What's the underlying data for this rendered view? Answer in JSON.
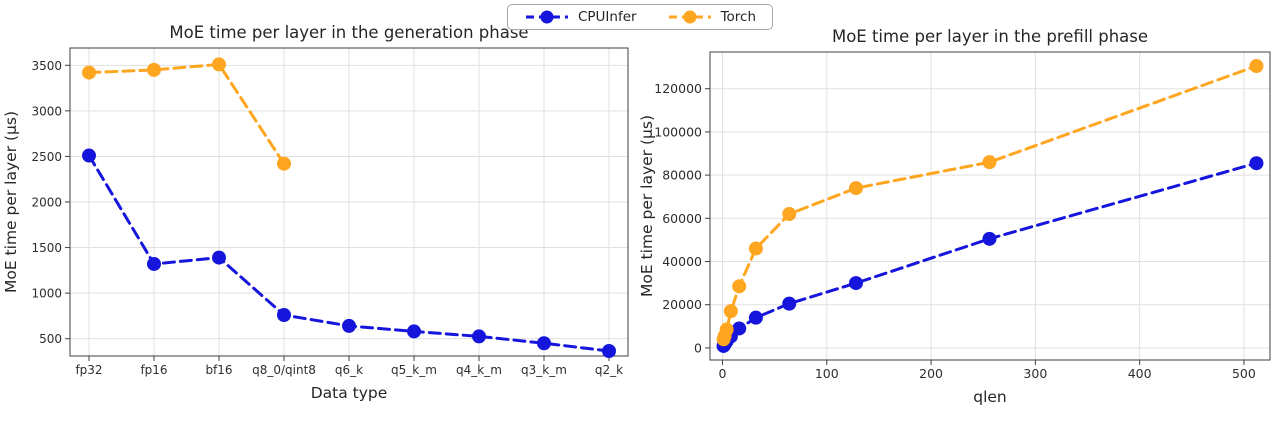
{
  "legend": {
    "items": [
      {
        "label": "CPUInfer",
        "color": "#1515dc"
      },
      {
        "label": "Torch",
        "color": "#ffa620"
      }
    ]
  },
  "chart_data": [
    {
      "type": "line",
      "title": "MoE time per layer in the generation phase",
      "xlabel": "Data type",
      "ylabel": "MoE time per layer (μs)",
      "categories": [
        "fp32",
        "fp16",
        "bf16",
        "q8_0/qint8",
        "q6_k",
        "q5_k_m",
        "q4_k_m",
        "q3_k_m",
        "q2_k"
      ],
      "series": [
        {
          "name": "CPUInfer",
          "color": "#1515dc",
          "values": [
            2510,
            1320,
            1390,
            760,
            640,
            580,
            525,
            450,
            365
          ]
        },
        {
          "name": "Torch",
          "color": "#ffa620",
          "values": [
            3420,
            3450,
            3510,
            2420,
            null,
            null,
            null,
            null,
            null
          ]
        }
      ],
      "ylim": [
        310,
        3690
      ],
      "yticks": [
        500,
        1000,
        1500,
        2000,
        2500,
        3000,
        3500
      ],
      "grid": true,
      "line_style": "dashed",
      "legend_position": "figure-top-center"
    },
    {
      "type": "line",
      "title": "MoE time per layer in the prefill phase",
      "xlabel": "qlen",
      "ylabel": "MoE time per layer (μs)",
      "x": [
        1,
        2,
        4,
        8,
        16,
        32,
        64,
        128,
        256,
        512
      ],
      "series": [
        {
          "name": "CPUInfer",
          "color": "#1515dc",
          "values": [
            900,
            1600,
            3100,
            5300,
            9000,
            14000,
            20500,
            30000,
            50500,
            85500
          ]
        },
        {
          "name": "Torch",
          "color": "#ffa620",
          "values": [
            4000,
            5500,
            8500,
            17000,
            28500,
            46000,
            62000,
            74000,
            86000,
            130500
          ]
        }
      ],
      "xlim": [
        -12,
        525
      ],
      "ylim": [
        -5600,
        137000
      ],
      "xticks": [
        0,
        100,
        200,
        300,
        400,
        500
      ],
      "yticks": [
        0,
        20000,
        40000,
        60000,
        80000,
        100000,
        120000
      ],
      "grid": true,
      "line_style": "dashed",
      "legend_position": "figure-top-center"
    }
  ],
  "colors": {
    "grid": "#e1e1e1",
    "spine": "#3f3f3f",
    "text": "#262626",
    "tick": "#2e2e2e"
  }
}
